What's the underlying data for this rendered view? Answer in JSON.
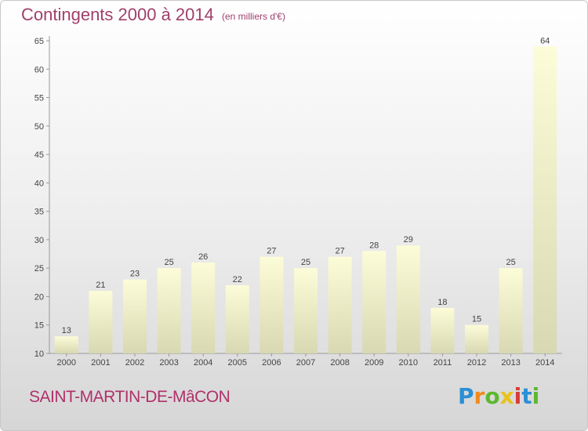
{
  "header": {
    "title": "Contingents 2000 à 2014",
    "subtitle": "(en milliers d'€)"
  },
  "footer": {
    "place": "SAINT-MARTIN-DE-MâCON",
    "logo": {
      "letters": [
        "P",
        "r",
        "o",
        "x",
        "i",
        "t",
        "i"
      ],
      "colors": [
        "#2a8fd6",
        "#f08a1c",
        "#5cb82e",
        "#e8c21a",
        "#d93a3a",
        "#2a8fd6",
        "#5cb82e"
      ]
    }
  },
  "chart_data": {
    "type": "bar",
    "title": "Contingents 2000 à 2014",
    "subtitle": "(en milliers d'€)",
    "categories": [
      "2000",
      "2001",
      "2002",
      "2003",
      "2004",
      "2005",
      "2006",
      "2007",
      "2008",
      "2009",
      "2010",
      "2011",
      "2012",
      "2013",
      "2014"
    ],
    "values": [
      13,
      21,
      23,
      25,
      26,
      22,
      27,
      25,
      27,
      28,
      29,
      18,
      15,
      25,
      64
    ],
    "ylim": [
      10,
      65
    ],
    "yticks": [
      10,
      15,
      20,
      25,
      30,
      35,
      40,
      45,
      50,
      55,
      60,
      65
    ],
    "grid": false,
    "colors": {
      "bar_light": "#fcfcd8",
      "bar_dark": "#d8d8b2",
      "axis": "#999999",
      "text": "#444444"
    }
  }
}
